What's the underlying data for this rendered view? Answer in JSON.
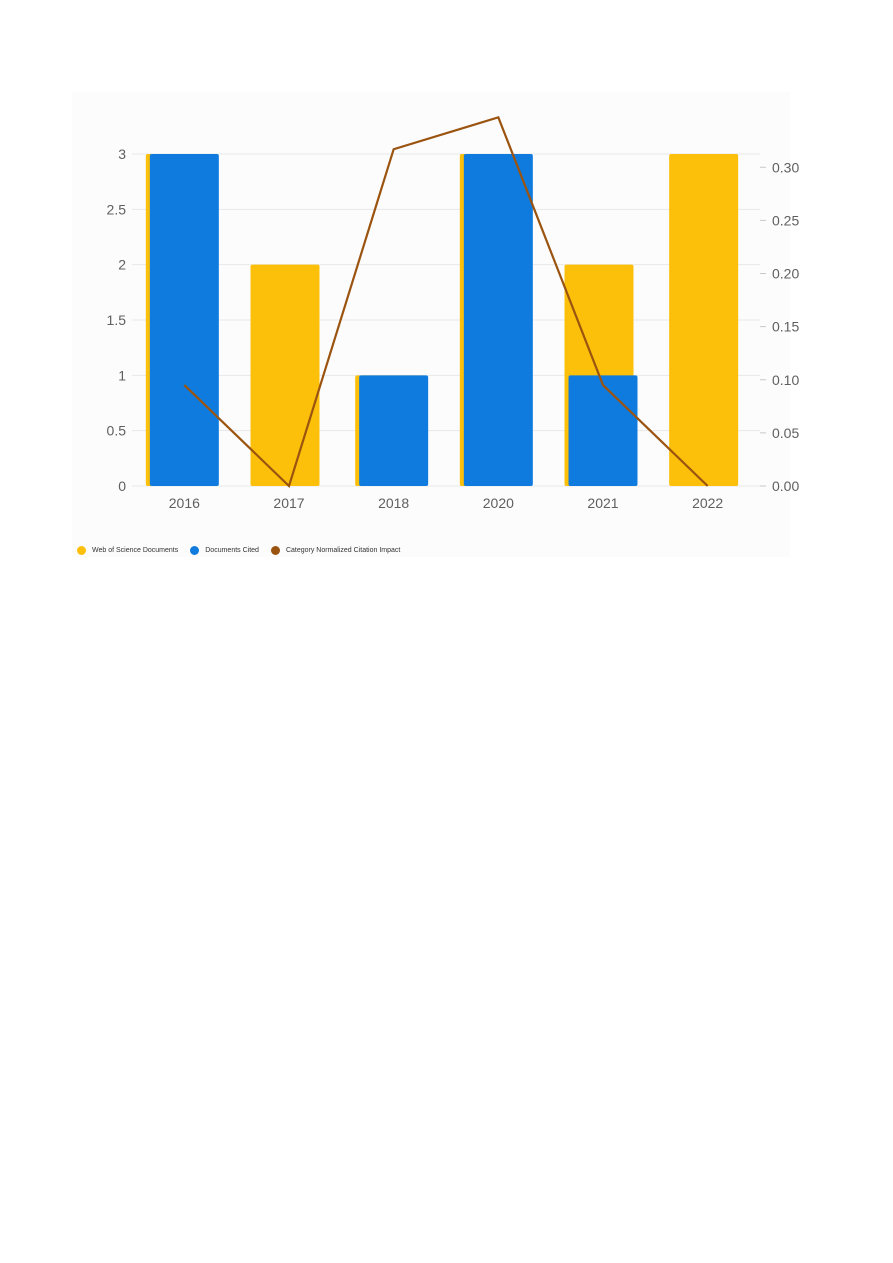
{
  "chart_data": {
    "type": "bar",
    "title": "",
    "xlabel": "",
    "ylabel": "",
    "categories": [
      "2016",
      "2017",
      "2018",
      "2020",
      "2021",
      "2022"
    ],
    "series": [
      {
        "name": "Web of Science Documents",
        "type": "bar",
        "axis": "left",
        "color": "#fcbf0a",
        "values": [
          3,
          2,
          1,
          3,
          2,
          3
        ]
      },
      {
        "name": "Documents Cited",
        "type": "bar",
        "axis": "left",
        "color": "#0f7bde",
        "values": [
          3,
          0,
          1,
          3,
          1,
          0
        ]
      },
      {
        "name": "Category Normalized Citation Impact",
        "type": "line",
        "axis": "right",
        "color": "#9b5410",
        "values": [
          0.095,
          0.0,
          0.317,
          0.347,
          0.095,
          0.0
        ]
      }
    ],
    "ylim": [
      0,
      3
    ],
    "yticks": [
      "0",
      "0.5",
      "1",
      "1.5",
      "2",
      "2.5",
      "3"
    ],
    "y2lim": [
      0,
      0.3125
    ],
    "y2ticks": [
      "0.00",
      "0.05",
      "0.10",
      "0.15",
      "0.20",
      "0.25",
      "0.30"
    ],
    "grid": true,
    "legend_position": "bottom-left"
  }
}
